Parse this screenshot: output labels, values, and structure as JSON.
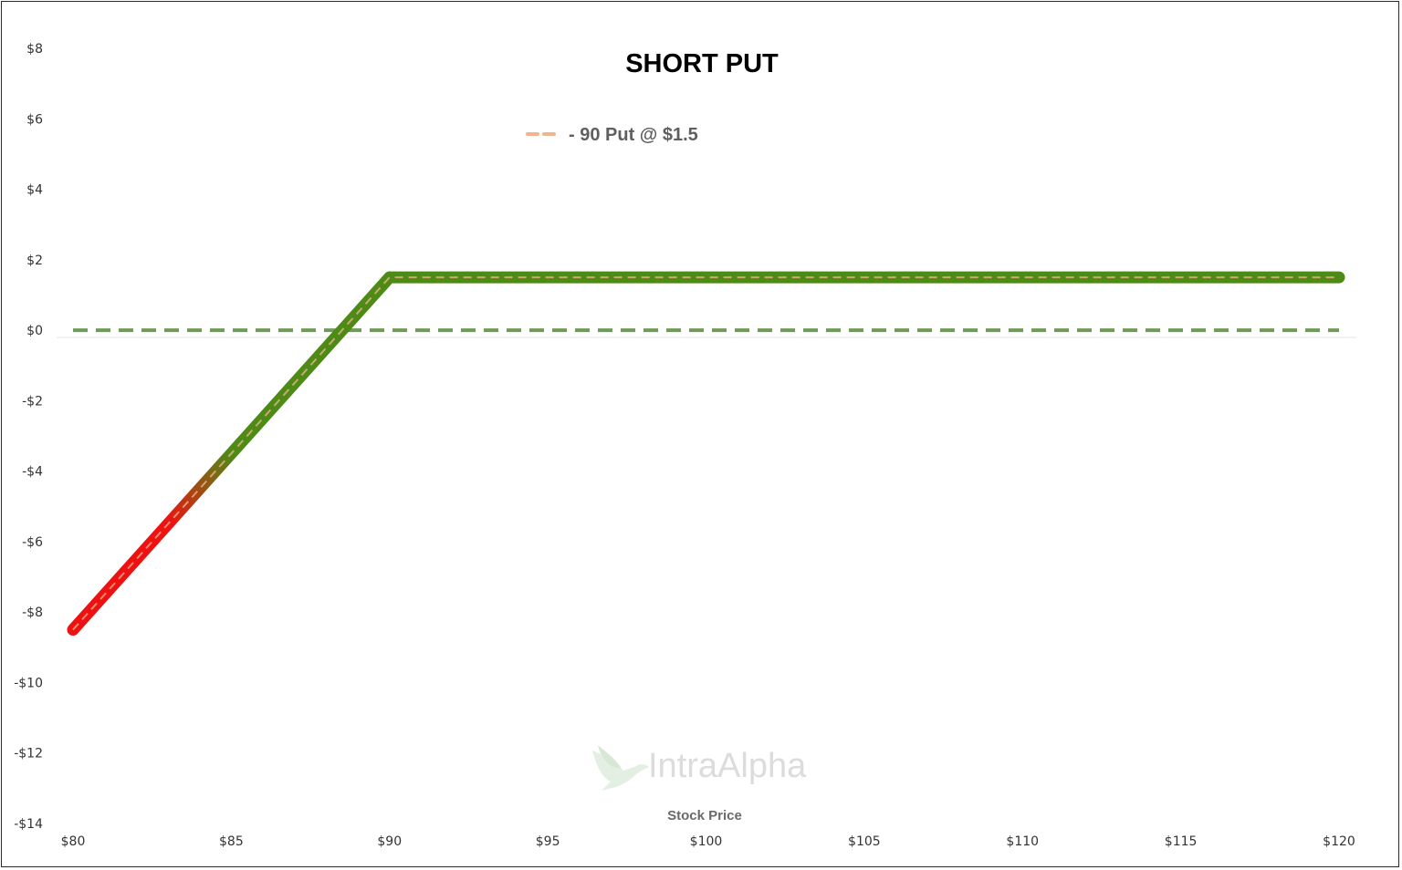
{
  "chart_data": {
    "type": "line",
    "title": "SHORT PUT",
    "xlabel": "Stock Price",
    "ylabel": "",
    "xlim": [
      80,
      120
    ],
    "ylim": [
      -14,
      8
    ],
    "x_ticks": [
      80,
      85,
      90,
      95,
      100,
      105,
      110,
      115,
      120
    ],
    "x_tick_labels": [
      "$80",
      "$85",
      "$90",
      "$95",
      "$100",
      "$105",
      "$110",
      "$115",
      "$120"
    ],
    "y_ticks": [
      8,
      6,
      4,
      2,
      0,
      -2,
      -4,
      -6,
      -8,
      -10,
      -12,
      -14
    ],
    "y_tick_labels": [
      "$8",
      "$6",
      "$4",
      "$2",
      "$0",
      "-$2",
      "-$4",
      "-$6",
      "-$8",
      "-$10",
      "-$12",
      "-$14"
    ],
    "legend_position": "top-center",
    "grid": false,
    "series": [
      {
        "name": "- 90 Put @ $1.5",
        "style": "dashed",
        "color": "#f2b48c",
        "x": [
          80,
          90,
          120
        ],
        "y": [
          -8.5,
          1.5,
          1.5
        ]
      },
      {
        "name": "",
        "style": "solid-profit-loss",
        "profit_color": "#4e8a16",
        "loss_color": "#ee1111",
        "x": [
          80,
          90,
          120
        ],
        "y": [
          -8.5,
          1.5,
          1.5
        ]
      },
      {
        "name": "",
        "style": "dashed-zero",
        "color": "#6f9a58",
        "x": [
          80,
          120
        ],
        "y": [
          0,
          0
        ]
      }
    ]
  },
  "watermark": {
    "text": "IntraAlpha",
    "icon": "hummingbird-icon"
  }
}
